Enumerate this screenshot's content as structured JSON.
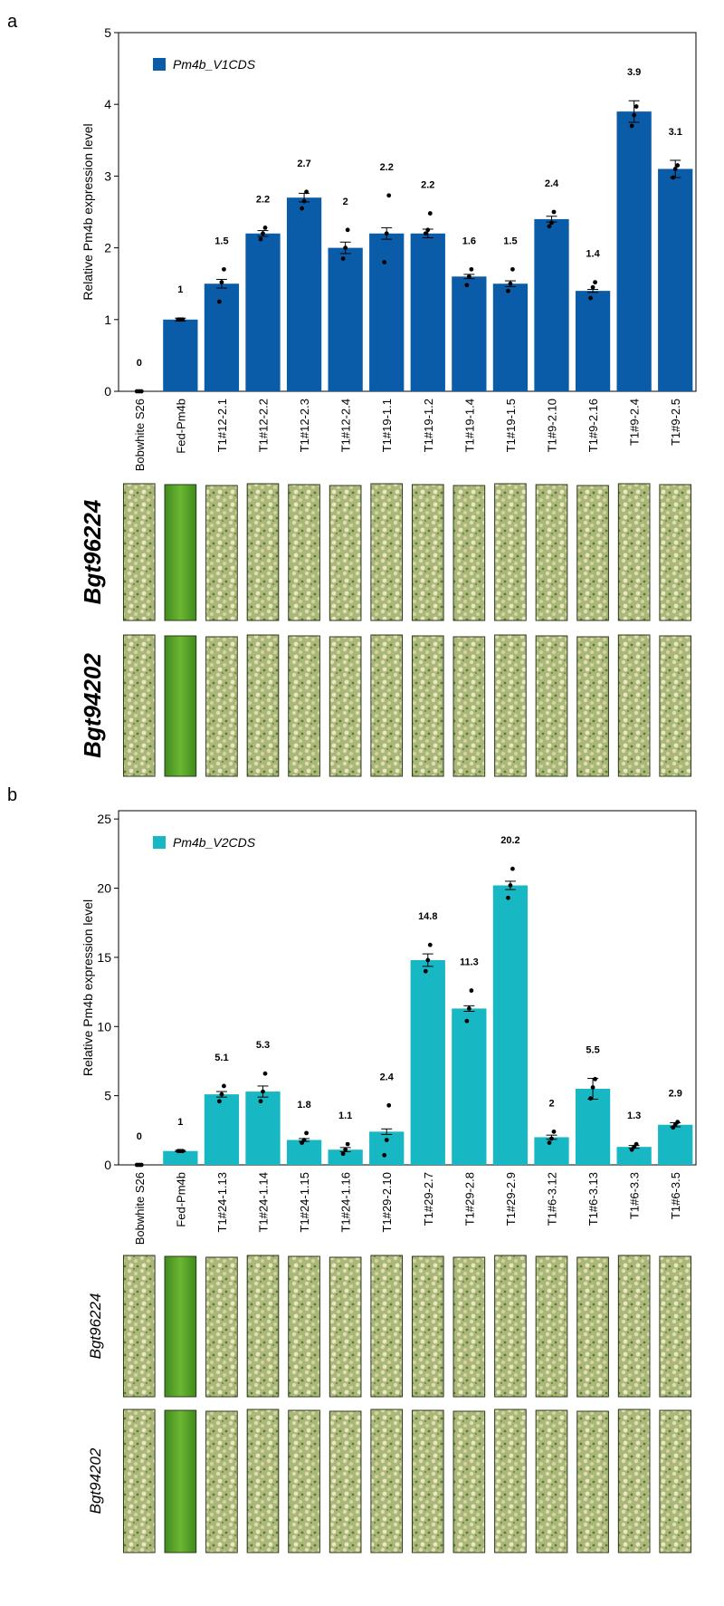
{
  "chart_data": [
    {
      "type": "bar",
      "panel": "a",
      "ylabel": "Relative Pm4b expression level",
      "categories": [
        "Bobwhite S26",
        "Fed-Pm4b",
        "T1#12-2.1",
        "T1#12-2.2",
        "T1#12-2.3",
        "T1#12-2.4",
        "T1#19-1.1",
        "T1#19-1.2",
        "T1#19-1.4",
        "T1#19-1.5",
        "T1#9-2.10",
        "T1#9-2.16",
        "T1#9-2.4",
        "T1#9-2.5"
      ],
      "series": [
        {
          "name": "Pm4b_V1CDS",
          "color": "#0b5ca8",
          "values": [
            0,
            1,
            1.5,
            2.2,
            2.7,
            2,
            2.2,
            2.2,
            1.6,
            1.5,
            2.4,
            1.4,
            3.9,
            3.1
          ],
          "errors": [
            0,
            0.02,
            0.06,
            0.04,
            0.06,
            0.08,
            0.08,
            0.06,
            0.03,
            0.04,
            0.04,
            0.02,
            0.15,
            0.12
          ],
          "points": [
            [
              0,
              0,
              0
            ],
            [
              1,
              1,
              1
            ],
            [
              1.25,
              1.52,
              1.7
            ],
            [
              2.12,
              2.2,
              2.28
            ],
            [
              2.55,
              2.65,
              2.78
            ],
            [
              1.85,
              2.0,
              2.25
            ],
            [
              1.8,
              2.2,
              2.73
            ],
            [
              2.2,
              2.25,
              2.48
            ],
            [
              1.48,
              1.6,
              1.7
            ],
            [
              1.4,
              1.5,
              1.7
            ],
            [
              2.3,
              2.35,
              2.5
            ],
            [
              1.3,
              1.45,
              1.52
            ],
            [
              3.7,
              3.85,
              3.97
            ],
            [
              2.98,
              3.1,
              3.15
            ]
          ]
        }
      ],
      "ylim": [
        0,
        5
      ],
      "yticks": [
        0,
        1,
        2,
        3,
        4,
        5
      ],
      "image_rows": [
        "Bgt96224",
        "Bgt94202"
      ]
    },
    {
      "type": "bar",
      "panel": "b",
      "ylabel": "Relative Pm4b expression level",
      "categories": [
        "Bobwhite S26",
        "Fed-Pm4b",
        "T1#24-1.13",
        "T1#24-1.14",
        "T1#24-1.15",
        "T1#24-1.16",
        "T1#29-2.10",
        "T1#29-2.7",
        "T1#29-2.8",
        "T1#29-2.9",
        "T1#6-3.12",
        "T1#6-3.13",
        "T1#6-3.3",
        "T1#6-3.5"
      ],
      "series": [
        {
          "name": "Pm4b_V2CDS",
          "color": "#17b8c4",
          "values": [
            0,
            1,
            5.1,
            5.3,
            1.8,
            1.1,
            2.4,
            14.8,
            11.3,
            20.2,
            2,
            5.5,
            1.3,
            2.9
          ],
          "errors": [
            0,
            0.05,
            0.2,
            0.4,
            0.1,
            0.15,
            0.2,
            0.45,
            0.2,
            0.3,
            0.15,
            0.75,
            0.1,
            0.15
          ],
          "points": [
            [
              0,
              0,
              0
            ],
            [
              1,
              1,
              1
            ],
            [
              4.6,
              5.1,
              5.7
            ],
            [
              4.6,
              5.3,
              6.6
            ],
            [
              1.6,
              1.8,
              2.3
            ],
            [
              0.8,
              1.1,
              1.5
            ],
            [
              0.7,
              1.8,
              4.3
            ],
            [
              14,
              14.8,
              15.9
            ],
            [
              10.4,
              11.3,
              12.6
            ],
            [
              19.3,
              20.2,
              21.4
            ],
            [
              1.6,
              1.9,
              2.4
            ],
            [
              4.8,
              5.6,
              6.2
            ],
            [
              1.1,
              1.3,
              1.5
            ],
            [
              2.7,
              2.9,
              3.1
            ]
          ]
        }
      ],
      "ylim": [
        0,
        25.6
      ],
      "yticks": [
        0,
        5,
        10,
        15,
        20,
        25
      ],
      "image_rows": [
        "Bgt96224",
        "Bgt94202"
      ]
    }
  ]
}
